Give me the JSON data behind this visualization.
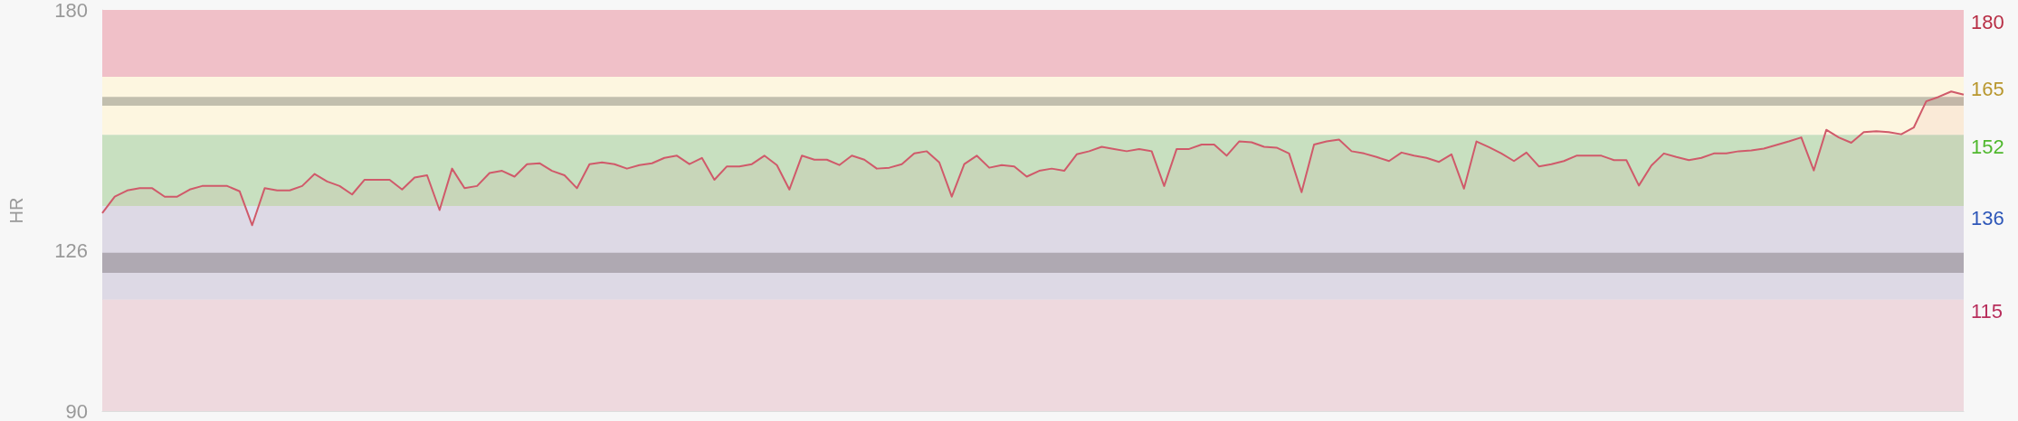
{
  "chart_data": {
    "type": "area",
    "ylabel": "HR",
    "ylim": [
      90,
      180
    ],
    "yticks": [
      180,
      126,
      90
    ],
    "grid": false,
    "marker": "none",
    "line_style": "solid",
    "categories": [
      null,
      null,
      null,
      null,
      null,
      null,
      null,
      null,
      null,
      null,
      null,
      null,
      null,
      null,
      null,
      null,
      null,
      null,
      null,
      null,
      null,
      null,
      null,
      null,
      null,
      null,
      null,
      null,
      null,
      null,
      null,
      null,
      null,
      null,
      null,
      null,
      null,
      null,
      null,
      null,
      null,
      null,
      null,
      null,
      null,
      null,
      null,
      null,
      null,
      null,
      null,
      null,
      null,
      null,
      null,
      null,
      null,
      null,
      null,
      null,
      null,
      null,
      null,
      null,
      null,
      null,
      null,
      null,
      null,
      null,
      null,
      null,
      null,
      null,
      null,
      null,
      null,
      null,
      null,
      null,
      null,
      null,
      null,
      null,
      null,
      null,
      null,
      null,
      null,
      null,
      null,
      null,
      null,
      null,
      null,
      null,
      null,
      null,
      null,
      null,
      null,
      null,
      null,
      null,
      null,
      null,
      null,
      null,
      null,
      null,
      null,
      null,
      null,
      null,
      null,
      null,
      null,
      null,
      null,
      null,
      null,
      null,
      null,
      null,
      null,
      null,
      null,
      null,
      null,
      null,
      null,
      null,
      null,
      null,
      null,
      null,
      null,
      null,
      null,
      null,
      null,
      null,
      null,
      null,
      null,
      null,
      null,
      null,
      null,
      null
    ],
    "series": [
      {
        "color": "#d05a6a",
        "values": [
          134.4,
          138.1,
          139.5,
          140.0,
          140.0,
          138.1,
          138.1,
          139.7,
          140.5,
          140.5,
          140.5,
          139.3,
          131.7,
          140.0,
          139.5,
          139.5,
          140.5,
          143.2,
          141.5,
          140.5,
          138.6,
          141.9,
          141.9,
          141.9,
          139.7,
          142.4,
          142.9,
          135.1,
          144.4,
          140.0,
          140.5,
          143.4,
          143.9,
          142.6,
          145.4,
          145.6,
          143.9,
          142.9,
          140.0,
          145.4,
          145.8,
          145.4,
          144.4,
          145.2,
          145.6,
          146.8,
          147.3,
          145.4,
          146.8,
          141.9,
          144.9,
          144.9,
          145.4,
          147.3,
          145.2,
          139.7,
          147.3,
          146.4,
          146.4,
          145.2,
          147.3,
          146.4,
          144.4,
          144.6,
          145.4,
          147.8,
          148.3,
          145.8,
          138.1,
          145.4,
          147.3,
          144.6,
          145.2,
          144.9,
          142.6,
          143.9,
          144.4,
          143.9,
          147.6,
          148.3,
          149.3,
          148.8,
          148.3,
          148.8,
          148.3,
          140.5,
          148.8,
          148.8,
          149.8,
          149.8,
          147.3,
          150.5,
          150.3,
          149.3,
          149.1,
          147.8,
          139.1,
          149.8,
          150.5,
          150.9,
          148.3,
          147.8,
          147.0,
          146.1,
          148.0,
          147.3,
          146.8,
          145.9,
          147.6,
          139.9,
          150.5,
          149.2,
          147.8,
          146.1,
          148.0,
          144.9,
          145.4,
          146.1,
          147.3,
          147.3,
          147.3,
          146.3,
          146.3,
          140.6,
          145.1,
          147.8,
          147.0,
          146.3,
          146.8,
          147.8,
          147.8,
          148.3,
          148.5,
          148.9,
          149.7,
          150.5,
          151.4,
          144.0,
          153.1,
          151.4,
          150.2,
          152.6,
          152.8,
          152.6,
          152.1,
          153.6,
          159.5,
          160.5,
          161.7,
          161.0
        ]
      }
    ],
    "bands": [
      {
        "axis": "y",
        "from": 165,
        "to": 180,
        "label": "180",
        "color": "#f0c0c8"
      },
      {
        "axis": "y",
        "from": 152,
        "to": 165,
        "label": "165",
        "color": "#fdf6e0"
      },
      {
        "axis": "y",
        "from": 136,
        "to": 152,
        "label": "152",
        "color": "#c8e0c0"
      },
      {
        "axis": "y",
        "from": 115,
        "to": 136,
        "label": "136",
        "color": "#dee3ef"
      },
      {
        "axis": "y",
        "from": 90,
        "to": 115,
        "label": "115",
        "color": "#f0e4e8"
      },
      {
        "axis": "y",
        "from": 158.5,
        "to": 160.5,
        "color": "#c2bfae"
      },
      {
        "axis": "y",
        "from": 121,
        "to": 125.5,
        "color": "#adb0b8"
      }
    ]
  }
}
